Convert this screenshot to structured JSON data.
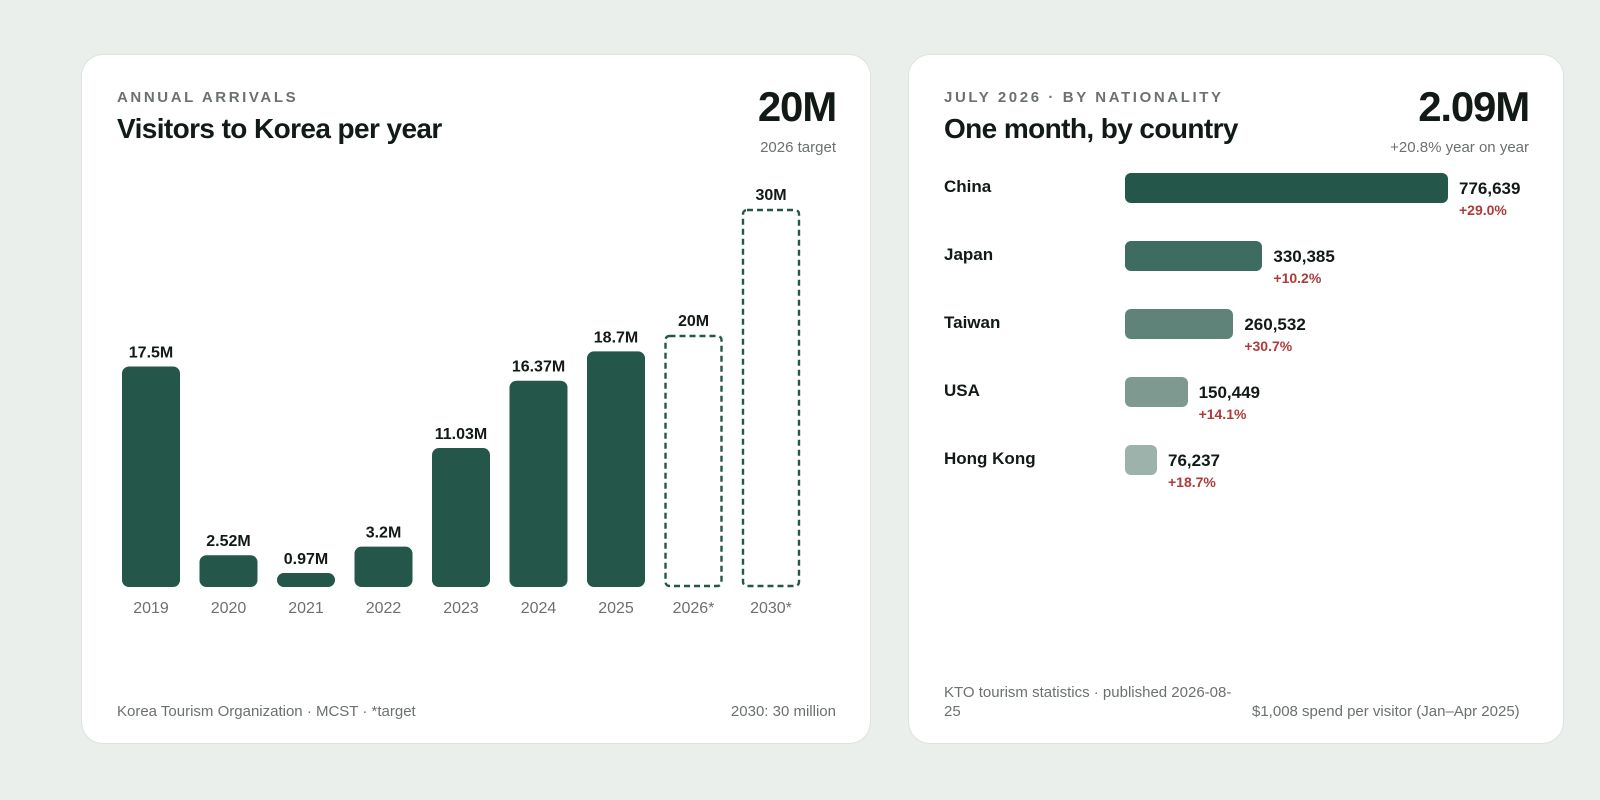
{
  "left": {
    "eyebrow": "ANNUAL ARRIVALS",
    "title": "Visitors to Korea per year",
    "big_value": "20M",
    "big_caption": "2026 target",
    "footer_source": "Korea Tourism Organization · MCST · *target",
    "footer_note": "2030: 30 million"
  },
  "right": {
    "eyebrow": "JULY 2026 · BY NATIONALITY",
    "title": "One month, by country",
    "big_value": "2.09M",
    "big_caption": "+20.8% year on year",
    "footer_source": "KTO tourism statistics · published 2026-08-25",
    "footer_note": "$1,008 spend per visitor (Jan–Apr 2025)"
  },
  "colors": {
    "bar": "#24564a",
    "target_dash": "#24564a",
    "growth": "#b03a3a"
  },
  "chart_data": [
    {
      "type": "bar",
      "title": "Visitors to Korea per year",
      "categories": [
        "2019",
        "2020",
        "2021",
        "2022",
        "2023",
        "2024",
        "2025",
        "2026*",
        "2030*"
      ],
      "values": [
        17.5,
        2.52,
        0.97,
        3.2,
        11.03,
        16.37,
        18.7,
        20,
        30
      ],
      "value_labels": [
        "17.5M",
        "2.52M",
        "0.97M",
        "3.2M",
        "11.03M",
        "16.37M",
        "18.7M",
        "20M",
        "30M"
      ],
      "target": [
        false,
        false,
        false,
        false,
        false,
        false,
        false,
        true,
        true
      ],
      "unit": "M",
      "ylim": [
        0,
        30
      ],
      "grid": false
    },
    {
      "type": "bar",
      "orientation": "horizontal",
      "title": "One month, by country",
      "categories": [
        "China",
        "Japan",
        "Taiwan",
        "USA",
        "Hong Kong"
      ],
      "values": [
        776639,
        330385,
        260532,
        150449,
        76237
      ],
      "value_labels": [
        "776,639",
        "330,385",
        "260,532",
        "150,449",
        "76,237"
      ],
      "growth": [
        "+29.0%",
        "+10.2%",
        "+30.7%",
        "+14.1%",
        "+18.7%"
      ],
      "bar_colors": [
        "#24564a",
        "#3f6c61",
        "#5f8279",
        "#7e9990",
        "#9db2ab"
      ],
      "grid": false
    }
  ]
}
